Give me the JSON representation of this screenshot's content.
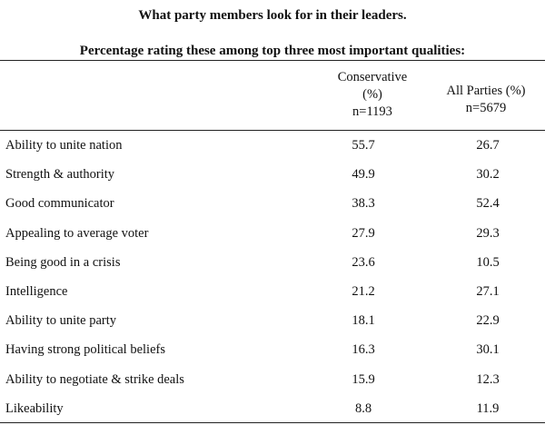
{
  "title": "What party members look for in their leaders.",
  "subtitle": "Percentage rating these among top three most important qualities:",
  "columns": [
    {
      "lines": [
        "Conservative",
        "(%)",
        "n=1193"
      ]
    },
    {
      "lines": [
        "All Parties (%)",
        "n=5679"
      ]
    }
  ],
  "rows": [
    {
      "label": "Ability to unite nation",
      "conservative": "55.7",
      "all_parties": "26.7"
    },
    {
      "label": "Strength & authority",
      "conservative": "49.9",
      "all_parties": "30.2"
    },
    {
      "label": "Good communicator",
      "conservative": "38.3",
      "all_parties": "52.4"
    },
    {
      "label": "Appealing to average voter",
      "conservative": "27.9",
      "all_parties": "29.3"
    },
    {
      "label": "Being good in a crisis",
      "conservative": "23.6",
      "all_parties": "10.5"
    },
    {
      "label": "Intelligence",
      "conservative": "21.2",
      "all_parties": "27.1"
    },
    {
      "label": "Ability to unite party",
      "conservative": "18.1",
      "all_parties": "22.9"
    },
    {
      "label": "Having strong political beliefs",
      "conservative": "16.3",
      "all_parties": "30.1"
    },
    {
      "label": "Ability to negotiate & strike deals",
      "conservative": "15.9",
      "all_parties": "12.3"
    },
    {
      "label": "Likeability",
      "conservative": "8.8",
      "all_parties": "11.9"
    }
  ]
}
